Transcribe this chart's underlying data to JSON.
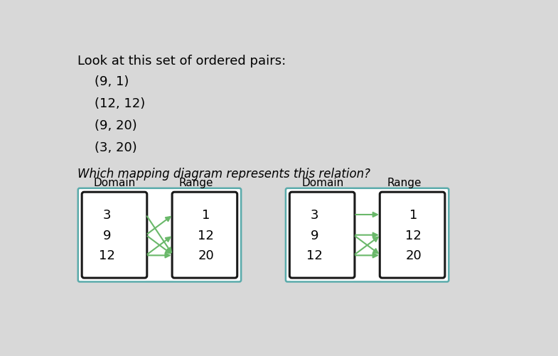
{
  "bg_color": "#d8d8d8",
  "title_text": "Look at this set of ordered pairs:",
  "pairs": [
    "(9, 1)",
    "(12, 12)",
    "(9, 20)",
    "(3, 20)"
  ],
  "question_text": "Which mapping diagram represents this relation?",
  "diagram1": {
    "domain_label": "Domain",
    "range_label": "Range",
    "domain_values": [
      "3",
      "9",
      "12"
    ],
    "range_values": [
      "1",
      "12",
      "20"
    ],
    "arrows": [
      [
        0,
        2
      ],
      [
        1,
        0
      ],
      [
        1,
        2
      ],
      [
        2,
        1
      ],
      [
        2,
        2
      ]
    ],
    "outer_box_color": "#5aabab",
    "inner_box_color": "#1a1a1a",
    "arrow_color": "#6ab86a"
  },
  "diagram2": {
    "domain_label": "Domain",
    "range_label": "Range",
    "domain_values": [
      "3",
      "9",
      "12"
    ],
    "range_values": [
      "1",
      "12",
      "20"
    ],
    "arrows": [
      [
        0,
        0
      ],
      [
        1,
        1
      ],
      [
        1,
        2
      ],
      [
        2,
        1
      ],
      [
        2,
        2
      ]
    ],
    "outer_box_color": "#5aabab",
    "inner_box_color": "#1a1a1a",
    "arrow_color": "#6ab86a"
  }
}
